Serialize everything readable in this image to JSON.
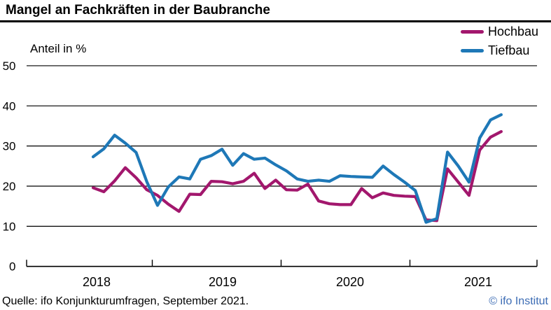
{
  "title": "Mangel an Fachkräften in der Baubranche",
  "y_axis_title": "Anteil in %",
  "legend": [
    {
      "label": "Hochbau",
      "color": "#a2176d"
    },
    {
      "label": "Tiefbau",
      "color": "#1e78b7"
    }
  ],
  "source": "Quelle: ifo Konjunkturumfragen, September 2021.",
  "copyright": "© ifo Institut",
  "colors": {
    "hochbau_line": "#a2176d",
    "tiefbau_line": "#1e78b7",
    "axis": "#000000",
    "copyright_text": "#3c6cb4",
    "title_text": "#000000"
  },
  "chart_data": {
    "type": "line",
    "title": "Mangel an Fachkräften in der Baubranche",
    "ylabel": "Anteil in %",
    "ylim": [
      0,
      50
    ],
    "yticks": [
      0,
      10,
      20,
      30,
      40,
      50
    ],
    "grid": "horizontal",
    "legend_position": "top-right",
    "xticklabels": [
      "2018",
      "2019",
      "2020",
      "2021"
    ],
    "x": [
      "Jul 2018",
      "Aug 2018",
      "Sep 2018",
      "Okt 2018",
      "Nov 2018",
      "Dez 2018",
      "Jan 2019",
      "Feb 2019",
      "Mrz 2019",
      "Apr 2019",
      "Mai 2019",
      "Jun 2019",
      "Jul 2019",
      "Aug 2019",
      "Sep 2019",
      "Okt 2019",
      "Nov 2019",
      "Dez 2019",
      "Jan 2020",
      "Feb 2020",
      "Mrz 2020",
      "Apr 2020",
      "Mai 2020",
      "Jun 2020",
      "Jul 2020",
      "Aug 2020",
      "Sep 2020",
      "Okt 2020",
      "Nov 2020",
      "Dez 2020",
      "Jan 2021",
      "Feb 2021",
      "Mrz 2021",
      "Apr 2021",
      "Mai 2021",
      "Jun 2021",
      "Jul 2021",
      "Aug 2021",
      "Sep 2021"
    ],
    "series": [
      {
        "name": "Hochbau",
        "color": "#a2176d",
        "values": [
          19.6,
          18.6,
          21.3,
          24.6,
          22.1,
          19.1,
          17.7,
          15.5,
          13.7,
          18.0,
          17.9,
          21.2,
          21.1,
          20.6,
          21.2,
          23.2,
          19.4,
          21.5,
          19.1,
          19.0,
          20.5,
          16.3,
          15.6,
          15.4,
          15.4,
          19.4,
          17.1,
          18.3,
          17.7,
          17.5,
          17.4,
          11.6,
          11.4,
          24.3,
          21.0,
          17.7,
          29.0,
          32.2,
          33.6
        ]
      },
      {
        "name": "Tiefbau",
        "color": "#1e78b7",
        "values": [
          27.3,
          29.3,
          32.7,
          30.7,
          28.4,
          21.1,
          15.2,
          19.8,
          22.3,
          21.8,
          26.7,
          27.6,
          29.2,
          25.2,
          28.1,
          26.7,
          27.0,
          25.3,
          23.8,
          21.8,
          21.2,
          21.5,
          21.2,
          22.6,
          22.4,
          22.3,
          22.2,
          25.0,
          22.9,
          21.0,
          18.9,
          11.0,
          11.9,
          28.5,
          25.0,
          21.0,
          32.0,
          36.5,
          37.8
        ]
      }
    ]
  }
}
